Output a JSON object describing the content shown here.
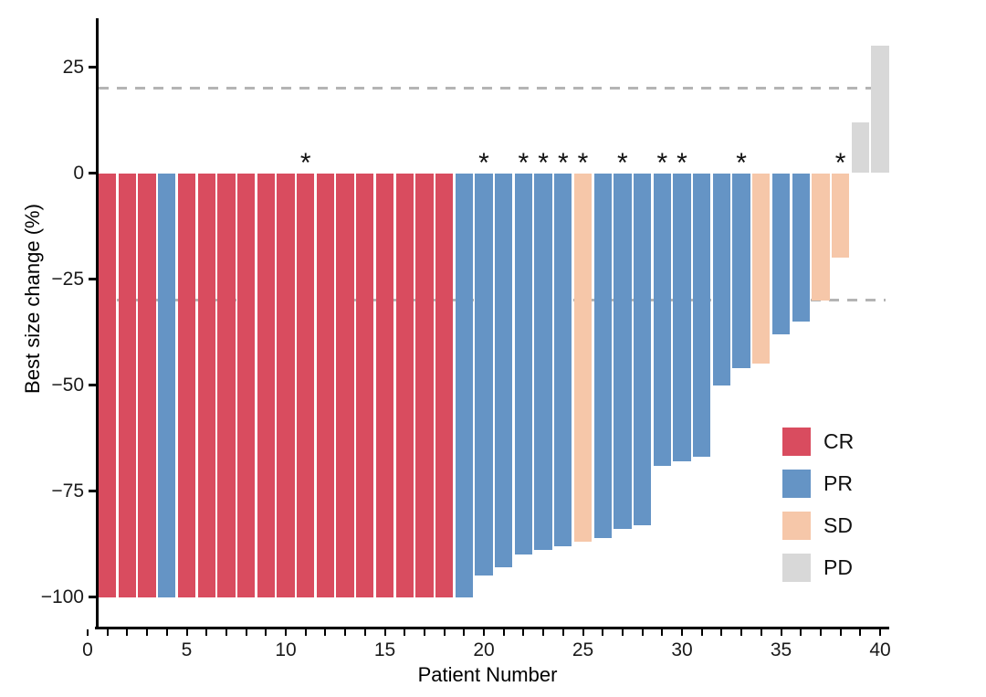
{
  "figure": {
    "background": "#ffffff",
    "annotation_symbol": "*"
  },
  "chart_data": {
    "type": "bar",
    "subtype": "waterfall",
    "title": "",
    "xlabel": "Patient Number",
    "ylabel": "Best size change (%)",
    "xlim": [
      0,
      40
    ],
    "ylim": [
      -107,
      35
    ],
    "grid": "off",
    "x_axis": {
      "labeled_ticks": [
        0,
        5,
        10,
        15,
        20,
        25,
        30,
        35,
        40
      ],
      "minor_tick_step": 1
    },
    "y_axis": {
      "ticks": [
        {
          "value": 25,
          "label": "25"
        },
        {
          "value": 0,
          "label": "0"
        },
        {
          "value": -25,
          "label": "−25"
        },
        {
          "value": -50,
          "label": "−50"
        },
        {
          "value": -75,
          "label": "−75"
        },
        {
          "value": -100,
          "label": "−100"
        }
      ]
    },
    "reference_lines": [
      {
        "value": 20,
        "style": "dashed",
        "color": "#b4b4b4"
      },
      {
        "value": -30,
        "style": "dashed",
        "color": "#b4b4b4"
      }
    ],
    "legend": {
      "position": "inside-right",
      "entries": [
        {
          "label": "CR",
          "color": "#d94c5f"
        },
        {
          "label": "PR",
          "color": "#6594c5"
        },
        {
          "label": "SD",
          "color": "#f6c7a9"
        },
        {
          "label": "PD",
          "color": "#d8d8d8"
        }
      ]
    },
    "patients": [
      {
        "n": 1,
        "value": -100,
        "response": "CR",
        "star": false
      },
      {
        "n": 2,
        "value": -100,
        "response": "CR",
        "star": false
      },
      {
        "n": 3,
        "value": -100,
        "response": "CR",
        "star": false
      },
      {
        "n": 4,
        "value": -100,
        "response": "PR",
        "star": false
      },
      {
        "n": 5,
        "value": -100,
        "response": "CR",
        "star": false
      },
      {
        "n": 6,
        "value": -100,
        "response": "CR",
        "star": false
      },
      {
        "n": 7,
        "value": -100,
        "response": "CR",
        "star": false
      },
      {
        "n": 8,
        "value": -100,
        "response": "CR",
        "star": false
      },
      {
        "n": 9,
        "value": -100,
        "response": "CR",
        "star": false
      },
      {
        "n": 10,
        "value": -100,
        "response": "CR",
        "star": false
      },
      {
        "n": 11,
        "value": -100,
        "response": "CR",
        "star": true
      },
      {
        "n": 12,
        "value": -100,
        "response": "CR",
        "star": false
      },
      {
        "n": 13,
        "value": -100,
        "response": "CR",
        "star": false
      },
      {
        "n": 14,
        "value": -100,
        "response": "CR",
        "star": false
      },
      {
        "n": 15,
        "value": -100,
        "response": "CR",
        "star": false
      },
      {
        "n": 16,
        "value": -100,
        "response": "CR",
        "star": false
      },
      {
        "n": 17,
        "value": -100,
        "response": "CR",
        "star": false
      },
      {
        "n": 18,
        "value": -100,
        "response": "CR",
        "star": false
      },
      {
        "n": 19,
        "value": -100,
        "response": "PR",
        "star": false
      },
      {
        "n": 20,
        "value": -95,
        "response": "PR",
        "star": true
      },
      {
        "n": 21,
        "value": -93,
        "response": "PR",
        "star": false
      },
      {
        "n": 22,
        "value": -90,
        "response": "PR",
        "star": true
      },
      {
        "n": 23,
        "value": -89,
        "response": "PR",
        "star": true
      },
      {
        "n": 24,
        "value": -88,
        "response": "PR",
        "star": true
      },
      {
        "n": 25,
        "value": -87,
        "response": "SD",
        "star": true
      },
      {
        "n": 26,
        "value": -86,
        "response": "PR",
        "star": false
      },
      {
        "n": 27,
        "value": -84,
        "response": "PR",
        "star": true
      },
      {
        "n": 28,
        "value": -83,
        "response": "PR",
        "star": false
      },
      {
        "n": 29,
        "value": -69,
        "response": "PR",
        "star": true
      },
      {
        "n": 30,
        "value": -68,
        "response": "PR",
        "star": true
      },
      {
        "n": 31,
        "value": -67,
        "response": "PR",
        "star": false
      },
      {
        "n": 32,
        "value": -50,
        "response": "PR",
        "star": false
      },
      {
        "n": 33,
        "value": -46,
        "response": "PR",
        "star": true
      },
      {
        "n": 34,
        "value": -45,
        "response": "SD",
        "star": false
      },
      {
        "n": 35,
        "value": -38,
        "response": "PR",
        "star": false
      },
      {
        "n": 36,
        "value": -35,
        "response": "PR",
        "star": false
      },
      {
        "n": 37,
        "value": -30,
        "response": "SD",
        "star": false
      },
      {
        "n": 38,
        "value": -20,
        "response": "SD",
        "star": true
      },
      {
        "n": 39,
        "value": 12,
        "response": "PD",
        "star": false
      },
      {
        "n": 40,
        "value": 30,
        "response": "PD",
        "star": false
      }
    ]
  }
}
